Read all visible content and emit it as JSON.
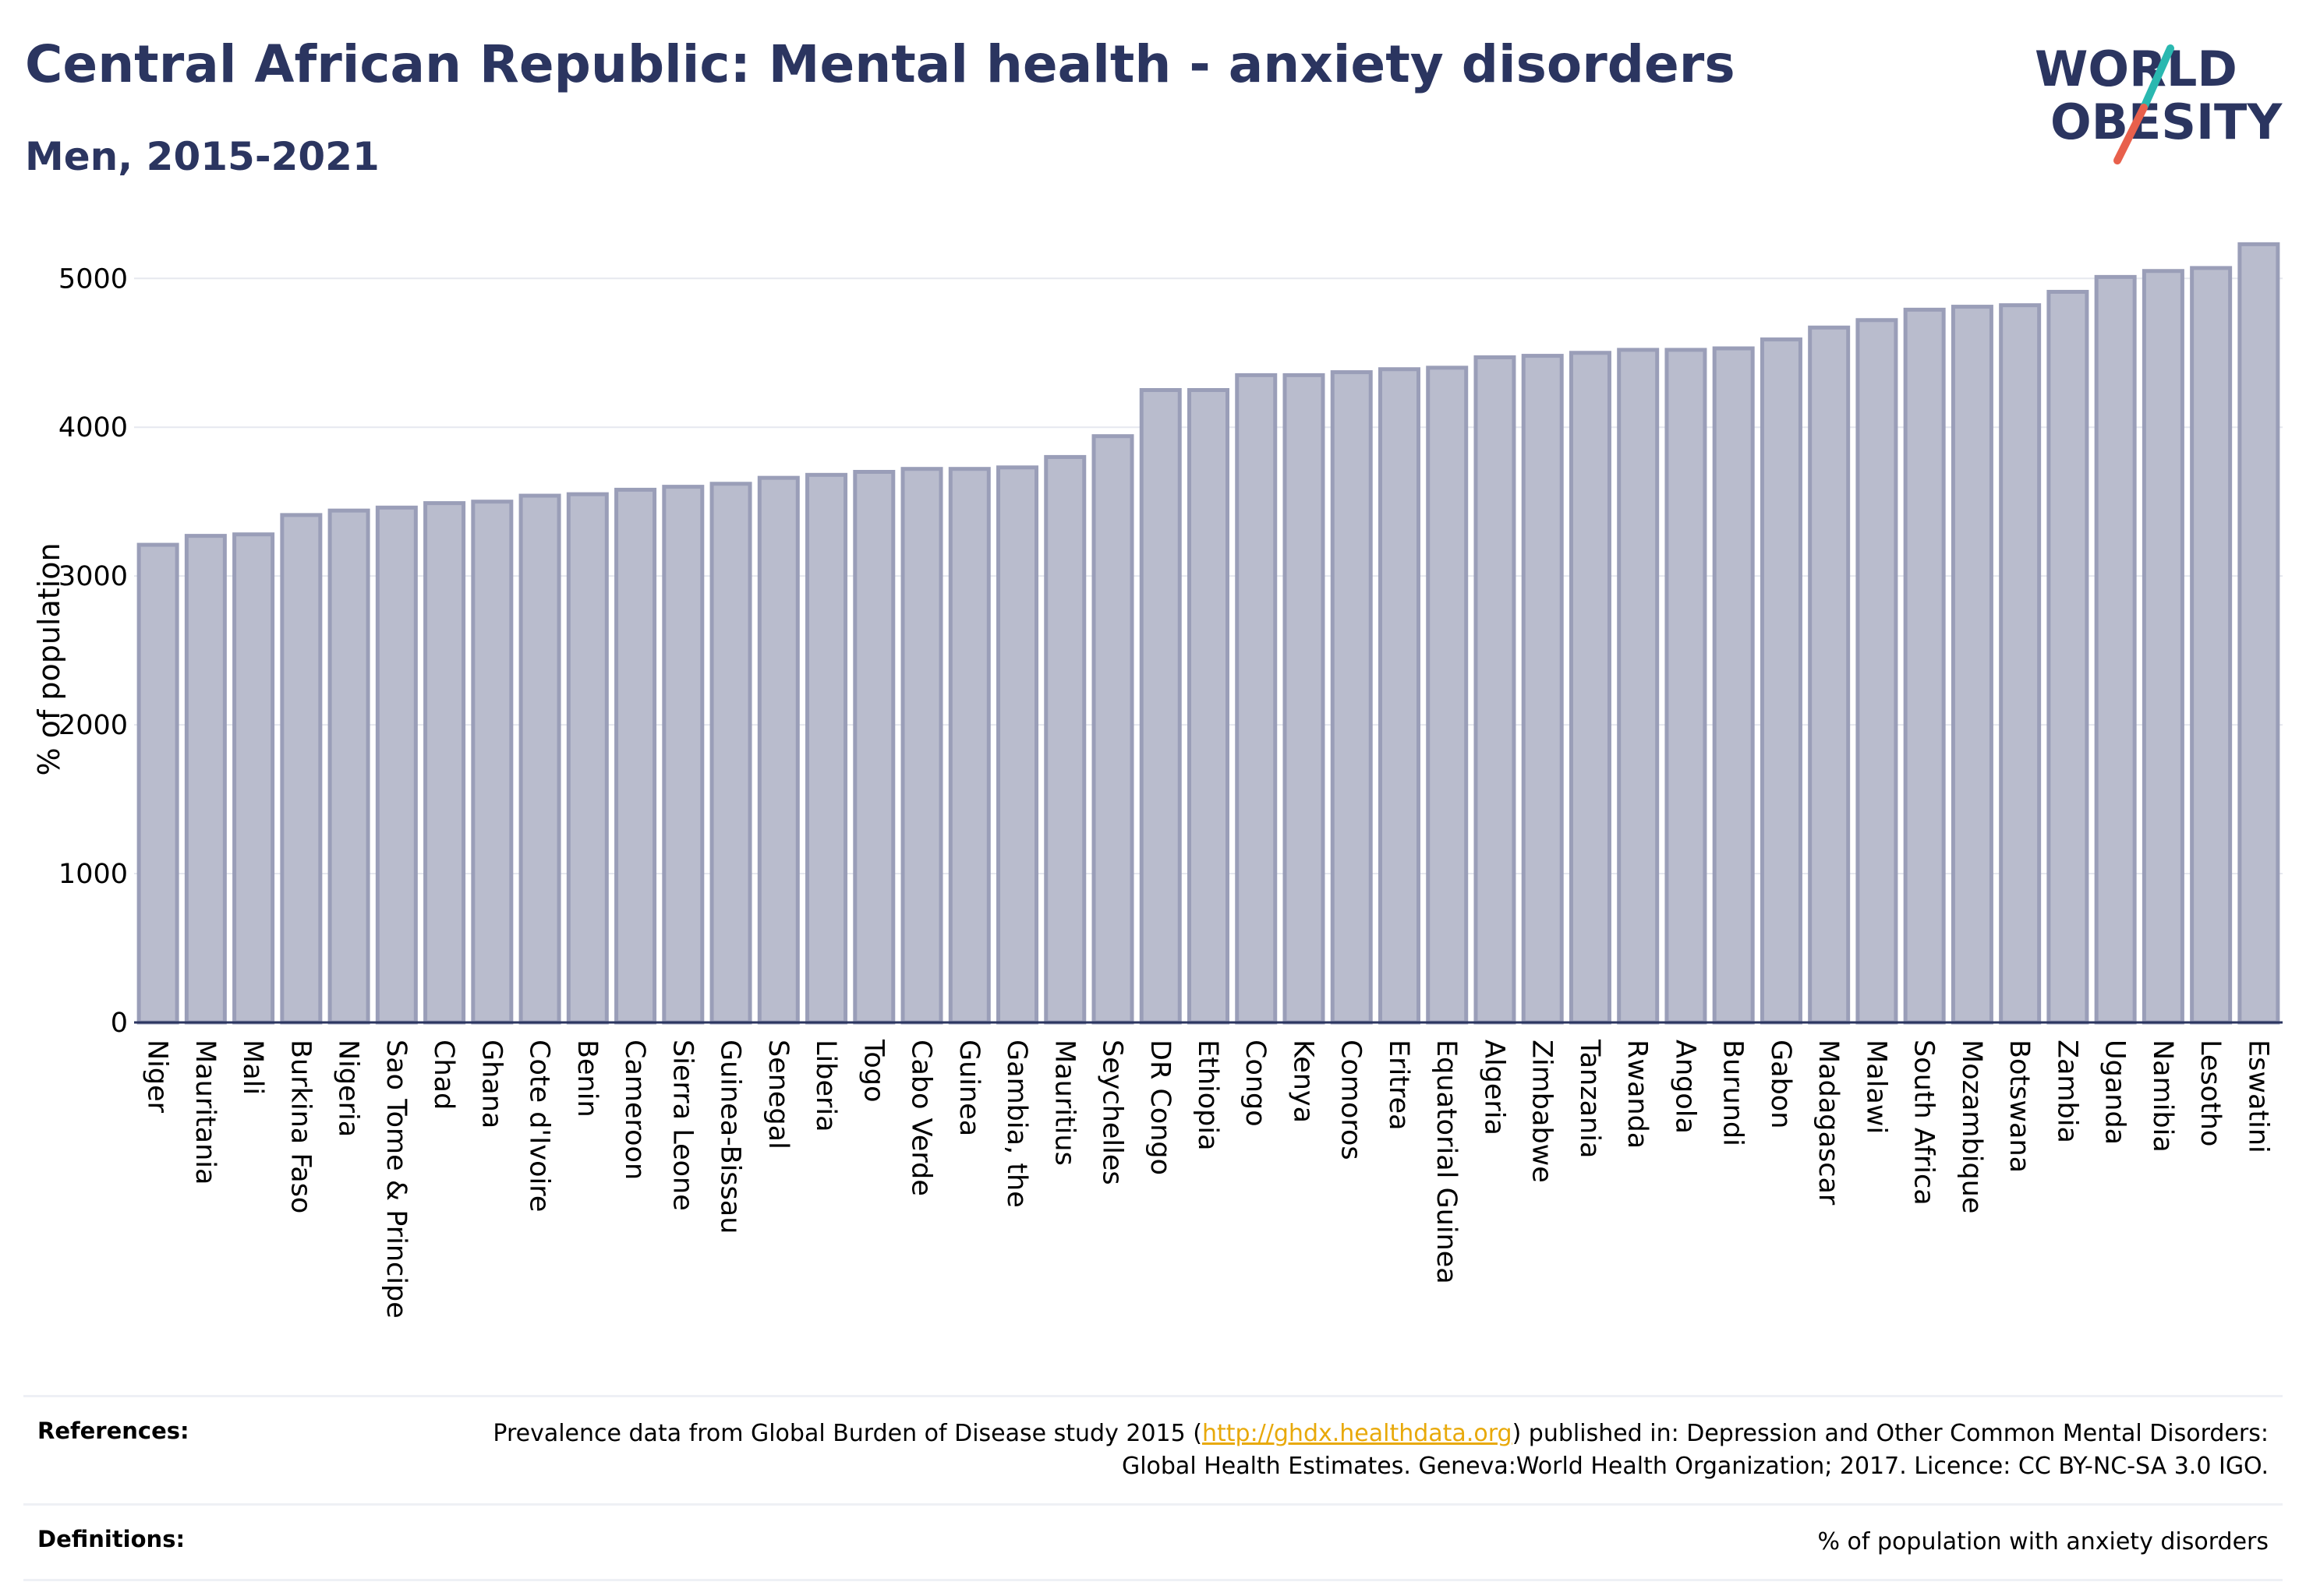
{
  "title": "Central African Republic: Mental health - anxiety disorders",
  "subtitle": "Men, 2015-2021",
  "logo": {
    "line1": "WORLD",
    "line2": "OBESITY",
    "accent_teal": "#2ab8b0",
    "accent_red": "#e8604c",
    "color": "#2b3560"
  },
  "references": {
    "label": "References:",
    "text_before": "Prevalence data from Global Burden of Disease study 2015 (",
    "link": "http://ghdx.healthdata.org",
    "text_after": ") published in: Depression and Other Common Mental Disorders: Global Health Estimates. Geneva:World Health Organization; 2017. Licence: CC BY-NC-SA 3.0 IGO."
  },
  "definitions": {
    "label": "Definitions:",
    "text": "% of population with anxiety disorders"
  },
  "chart_data": {
    "type": "bar",
    "title": "Central African Republic: Mental health - anxiety disorders",
    "subtitle": "Men, 2015-2021",
    "ylabel": "% of population",
    "xlabel": "",
    "ylim": [
      0,
      5300
    ],
    "yticks": [
      0,
      1000,
      2000,
      3000,
      4000,
      5000
    ],
    "grid": true,
    "bar_color": "#b9bccd",
    "bar_edge_color": "#9a9eb8",
    "categories": [
      "Niger",
      "Mauritania",
      "Mali",
      "Burkina Faso",
      "Nigeria",
      "Sao Tome & Principe",
      "Chad",
      "Ghana",
      "Cote d'Ivoire",
      "Benin",
      "Cameroon",
      "Sierra Leone",
      "Guinea-Bissau",
      "Senegal",
      "Liberia",
      "Togo",
      "Cabo Verde",
      "Guinea",
      "Gambia, the",
      "Mauritius",
      "Seychelles",
      "DR Congo",
      "Ethiopia",
      "Congo",
      "Kenya",
      "Comoros",
      "Eritrea",
      "Equatorial Guinea",
      "Algeria",
      "Zimbabwe",
      "Tanzania",
      "Rwanda",
      "Angola",
      "Burundi",
      "Gabon",
      "Madagascar",
      "Malawi",
      "South Africa",
      "Mozambique",
      "Botswana",
      "Zambia",
      "Uganda",
      "Namibia",
      "Lesotho",
      "Eswatini"
    ],
    "values": [
      3210,
      3270,
      3280,
      3410,
      3440,
      3460,
      3490,
      3500,
      3540,
      3550,
      3580,
      3600,
      3620,
      3660,
      3680,
      3700,
      3720,
      3720,
      3730,
      3800,
      3940,
      4250,
      4250,
      4350,
      4350,
      4370,
      4390,
      4400,
      4470,
      4480,
      4500,
      4520,
      4520,
      4530,
      4590,
      4670,
      4720,
      4790,
      4810,
      4820,
      4910,
      5010,
      5050,
      5070,
      5230
    ]
  }
}
